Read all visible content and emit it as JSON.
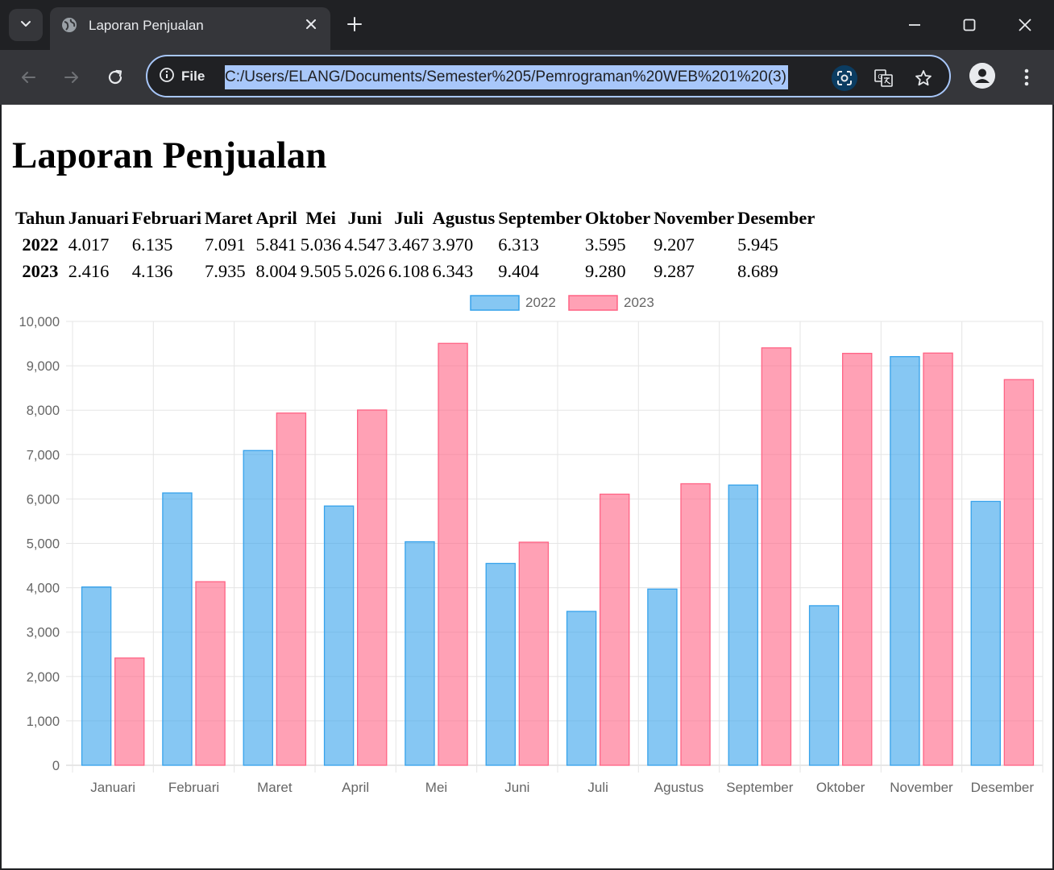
{
  "browser": {
    "tab_title": "Laporan Penjualan",
    "site_info_label": "File",
    "url": "C:/Users/ELANG/Documents/Semester%205/Pemrograman%20WEB%201%20(3)"
  },
  "page": {
    "title": "Laporan Penjualan",
    "table": {
      "headers": [
        "Tahun",
        "Januari",
        "Februari",
        "Maret",
        "April",
        "Mei",
        "Juni",
        "Juli",
        "Agustus",
        "September",
        "Oktober",
        "November",
        "Desember"
      ],
      "rows": [
        {
          "year": "2022",
          "values": [
            "4.017",
            "6.135",
            "7.091",
            "5.841",
            "5.036",
            "4.547",
            "3.467",
            "3.970",
            "6.313",
            "3.595",
            "9.207",
            "5.945"
          ]
        },
        {
          "year": "2023",
          "values": [
            "2.416",
            "4.136",
            "7.935",
            "8.004",
            "9.505",
            "5.026",
            "6.108",
            "6.343",
            "9.404",
            "9.280",
            "9.287",
            "8.689"
          ]
        }
      ]
    }
  },
  "chart_data": {
    "type": "bar",
    "categories": [
      "Januari",
      "Februari",
      "Maret",
      "April",
      "Mei",
      "Juni",
      "Juli",
      "Agustus",
      "September",
      "Oktober",
      "November",
      "Desember"
    ],
    "series": [
      {
        "name": "2022",
        "values": [
          4017,
          6135,
          7091,
          5841,
          5036,
          4547,
          3467,
          3970,
          6313,
          3595,
          9207,
          5945
        ],
        "color": "#36a2eb"
      },
      {
        "name": "2023",
        "values": [
          2416,
          4136,
          7935,
          8004,
          9505,
          5026,
          6108,
          6343,
          9404,
          9280,
          9287,
          8689
        ],
        "color": "#ff6384"
      }
    ],
    "ylim": [
      0,
      10000
    ],
    "yticks": [
      "0",
      "1,000",
      "2,000",
      "3,000",
      "4,000",
      "5,000",
      "6,000",
      "7,000",
      "8,000",
      "9,000",
      "10,000"
    ],
    "grid": true,
    "legend_position": "top"
  }
}
